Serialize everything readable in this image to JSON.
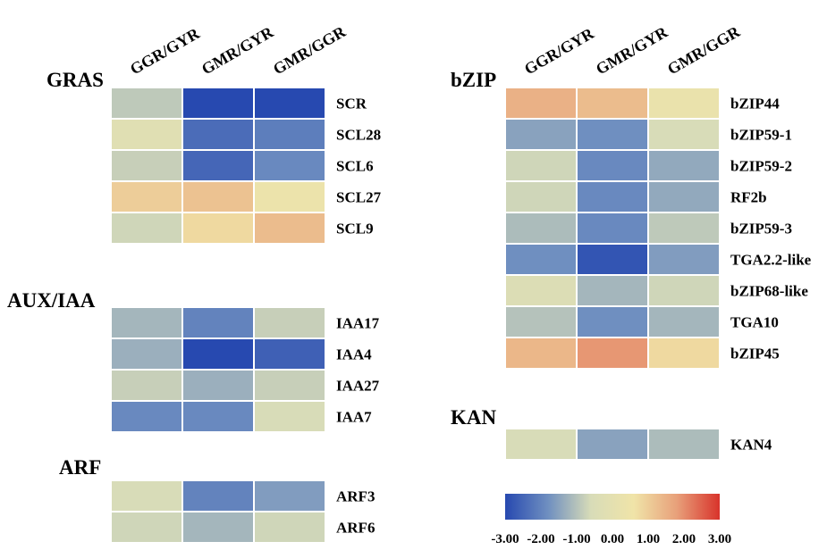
{
  "chart_data": {
    "type": "heatmap",
    "columns": [
      "GGR/GYR",
      "GMR/GYR",
      "GMR/GGR"
    ],
    "value_range": [
      -3.0,
      3.0
    ],
    "colorbar": {
      "colors": [
        "#2749b0",
        "#6f8fc0",
        "#d8dcb8",
        "#f0e4a8",
        "#e8a07a",
        "#d8332b"
      ],
      "ticks": [
        -3.0,
        -2.0,
        -1.0,
        0.0,
        1.0,
        2.0,
        3.0
      ],
      "tick_labels": [
        "-3.00",
        "-2.00",
        "-1.00",
        "0.00",
        "1.00",
        "2.00",
        "3.00"
      ]
    },
    "groups": [
      {
        "name": "GRAS",
        "rows": [
          {
            "gene": "SCR",
            "values": [
              -0.9,
              -3.0,
              -3.0
            ]
          },
          {
            "gene": "SCL28",
            "values": [
              -0.2,
              -2.4,
              -2.1
            ]
          },
          {
            "gene": "SCL6",
            "values": [
              -0.8,
              -2.5,
              -1.9
            ]
          },
          {
            "gene": "SCL27",
            "values": [
              1.0,
              1.2,
              0.4
            ]
          },
          {
            "gene": "SCL9",
            "values": [
              -0.7,
              0.8,
              1.3
            ]
          }
        ]
      },
      {
        "name": "AUX/IAA",
        "rows": [
          {
            "gene": "IAA17",
            "values": [
              -1.2,
              -2.0,
              -0.8
            ]
          },
          {
            "gene": "IAA4",
            "values": [
              -1.3,
              -3.0,
              -2.6
            ]
          },
          {
            "gene": "IAA27",
            "values": [
              -0.8,
              -1.3,
              -0.8
            ]
          },
          {
            "gene": "IAA7",
            "values": [
              -1.9,
              -1.9,
              -0.6
            ]
          }
        ]
      },
      {
        "name": "ARF",
        "rows": [
          {
            "gene": "ARF3",
            "values": [
              -0.6,
              -2.0,
              -1.6
            ]
          },
          {
            "gene": "ARF6",
            "values": [
              -0.7,
              -1.2,
              -0.7
            ]
          }
        ]
      },
      {
        "name": "bZIP",
        "rows": [
          {
            "gene": "bZIP44",
            "values": [
              1.5,
              1.3,
              0.3
            ]
          },
          {
            "gene": "bZIP59-1",
            "values": [
              -1.5,
              -1.8,
              -0.6
            ]
          },
          {
            "gene": "bZIP59-2",
            "values": [
              -0.7,
              -1.9,
              -1.4
            ]
          },
          {
            "gene": "RF2b",
            "values": [
              -0.7,
              -1.9,
              -1.4
            ]
          },
          {
            "gene": "bZIP59-3",
            "values": [
              -1.1,
              -1.9,
              -0.9
            ]
          },
          {
            "gene": "TGA2.2-like",
            "values": [
              -1.8,
              -2.8,
              -1.6
            ]
          },
          {
            "gene": "bZIP68-like",
            "values": [
              -0.4,
              -1.2,
              -0.7
            ]
          },
          {
            "gene": "TGA10",
            "values": [
              -1.0,
              -1.8,
              -1.2
            ]
          },
          {
            "gene": "bZIP45",
            "values": [
              1.4,
              1.9,
              0.8
            ]
          }
        ]
      },
      {
        "name": "KAN",
        "rows": [
          {
            "gene": "KAN4",
            "values": [
              -0.6,
              -1.5,
              -1.1
            ]
          }
        ]
      }
    ]
  }
}
